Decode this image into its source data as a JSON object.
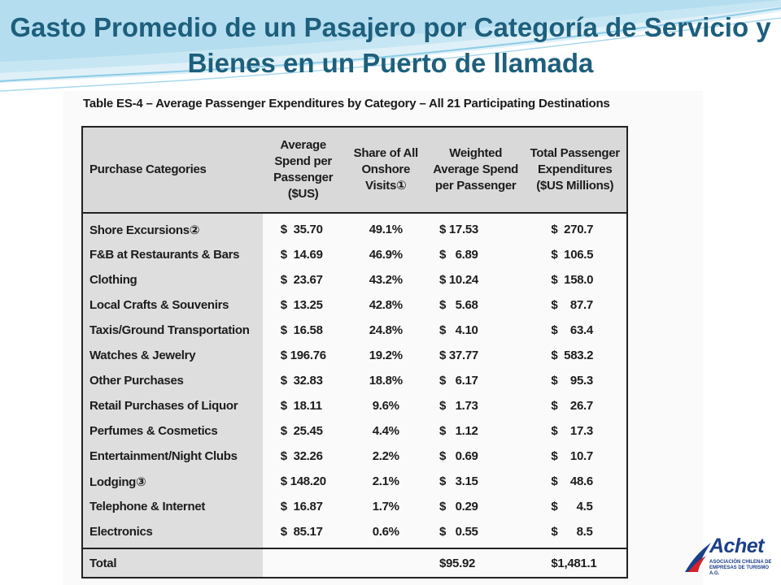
{
  "slide_title": "Gasto Promedio de un Pasajero por Categoría de Servicio y Bienes en un Puerto de llamada",
  "table_title": "Table ES-4 – Average Passenger Expenditures by Category – All 21 Participating Destinations",
  "headers": {
    "category": "Purchase Categories",
    "avg_spend": "Average Spend per Passenger ($US)",
    "share": "Share of All Onshore Visits①",
    "weighted": "Weighted Average Spend per Passenger",
    "total": "Total Passenger Expenditures ($US Millions)"
  },
  "rows": [
    {
      "category": "Shore Excursions②",
      "avg": "$  35.70",
      "share": "49.1%",
      "weighted": "$ 17.53",
      "total": "$  270.7"
    },
    {
      "category": "F&B at Restaurants & Bars",
      "avg": "$  14.69",
      "share": "46.9%",
      "weighted": "$   6.89",
      "total": "$  106.5"
    },
    {
      "category": "Clothing",
      "avg": "$  23.67",
      "share": "43.2%",
      "weighted": "$ 10.24",
      "total": "$  158.0"
    },
    {
      "category": "Local Crafts & Souvenirs",
      "avg": "$  13.25",
      "share": "42.8%",
      "weighted": "$   5.68",
      "total": "$    87.7"
    },
    {
      "category": "Taxis/Ground Transportation",
      "avg": "$  16.58",
      "share": "24.8%",
      "weighted": "$   4.10",
      "total": "$    63.4"
    },
    {
      "category": "Watches & Jewelry",
      "avg": "$ 196.76",
      "share": "19.2%",
      "weighted": "$ 37.77",
      "total": "$  583.2"
    },
    {
      "category": "Other Purchases",
      "avg": "$  32.83",
      "share": "18.8%",
      "weighted": "$   6.17",
      "total": "$    95.3"
    },
    {
      "category": "Retail Purchases of Liquor",
      "avg": "$  18.11",
      "share": "9.6%",
      "weighted": "$   1.73",
      "total": "$    26.7"
    },
    {
      "category": "Perfumes & Cosmetics",
      "avg": "$  25.45",
      "share": "4.4%",
      "weighted": "$   1.12",
      "total": "$    17.3"
    },
    {
      "category": "Entertainment/Night Clubs",
      "avg": "$  32.26",
      "share": "2.2%",
      "weighted": "$   0.69",
      "total": "$    10.7"
    },
    {
      "category": "Lodging③",
      "avg": "$ 148.20",
      "share": "2.1%",
      "weighted": "$   3.15",
      "total": "$    48.6"
    },
    {
      "category": "Telephone & Internet",
      "avg": "$  16.87",
      "share": "1.7%",
      "weighted": "$   0.29",
      "total": "$      4.5"
    },
    {
      "category": "Electronics",
      "avg": "$  85.17",
      "share": "0.6%",
      "weighted": "$   0.55",
      "total": "$      8.5"
    }
  ],
  "total_row": {
    "label": "Total",
    "weighted": "$95.92",
    "total": "$1,481.1"
  },
  "logo": {
    "name": "Achet",
    "subtitle": "ASOCIACIÓN CHILENA DE EMPRESAS DE TURISMO A.G.",
    "colors": {
      "blue": "#1b3f8a",
      "red": "#d8222a"
    }
  },
  "colors": {
    "title": "#1d5f7c",
    "header_fill": "#d9d9d9",
    "category_fill": "#dedede"
  }
}
